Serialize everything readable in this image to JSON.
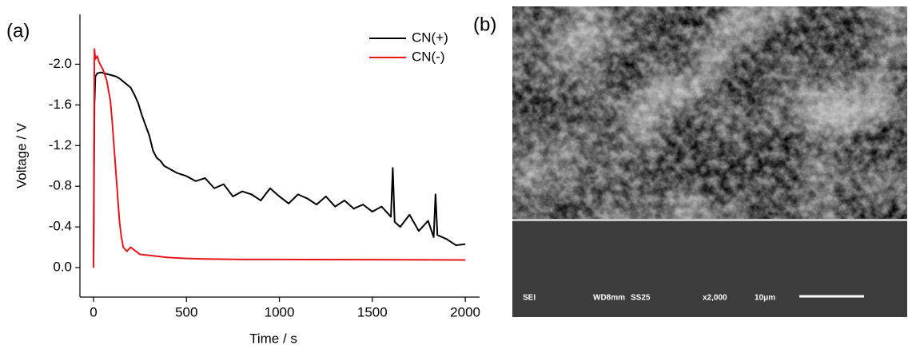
{
  "chart_data": {
    "type": "line",
    "panel_label": "(a)",
    "x_label": "Time / s",
    "y_label": "Voltage / V",
    "xlim": [
      -73,
      2077
    ],
    "xticks": [
      0,
      500,
      1000,
      1500,
      2000
    ],
    "ylim": [
      0.29,
      -2.49
    ],
    "yticks": [
      {
        "value": -2,
        "label": "-2.0"
      },
      {
        "value": -1.6,
        "label": "-1.6"
      },
      {
        "value": -1.2,
        "label": "-1.2"
      },
      {
        "value": -0.8,
        "label": "-0.8"
      },
      {
        "value": -0.4,
        "label": "-0.4"
      },
      {
        "value": 0,
        "label": "0.0"
      }
    ],
    "legend": "top-right",
    "series": [
      {
        "name": "CN(+)",
        "color": "#000000",
        "x": [
          0,
          5,
          10,
          20,
          40,
          60,
          80,
          100,
          120,
          140,
          160,
          180,
          200,
          220,
          240,
          260,
          280,
          300,
          320,
          340,
          360,
          380,
          400,
          450,
          500,
          550,
          600,
          650,
          700,
          750,
          800,
          850,
          900,
          950,
          1000,
          1050,
          1100,
          1150,
          1200,
          1250,
          1300,
          1350,
          1400,
          1450,
          1500,
          1550,
          1600,
          1610,
          1620,
          1650,
          1700,
          1750,
          1800,
          1830,
          1840,
          1850,
          1900,
          1950,
          2000
        ],
        "values": [
          0,
          -1.6,
          -1.88,
          -1.91,
          -1.92,
          -1.91,
          -1.9,
          -1.89,
          -1.88,
          -1.86,
          -1.83,
          -1.8,
          -1.77,
          -1.7,
          -1.62,
          -1.5,
          -1.4,
          -1.3,
          -1.15,
          -1.08,
          -1.05,
          -1.0,
          -0.98,
          -0.93,
          -0.9,
          -0.85,
          -0.88,
          -0.78,
          -0.82,
          -0.7,
          -0.75,
          -0.72,
          -0.66,
          -0.78,
          -0.7,
          -0.63,
          -0.72,
          -0.68,
          -0.62,
          -0.7,
          -0.6,
          -0.66,
          -0.58,
          -0.62,
          -0.55,
          -0.6,
          -0.5,
          -0.98,
          -0.45,
          -0.4,
          -0.52,
          -0.36,
          -0.46,
          -0.3,
          -0.72,
          -0.32,
          -0.28,
          -0.22,
          -0.23
        ]
      },
      {
        "name": "CN(-)",
        "color": "#e8161b",
        "x": [
          0,
          5,
          10,
          20,
          30,
          50,
          70,
          90,
          100,
          110,
          120,
          130,
          140,
          150,
          160,
          180,
          200,
          250,
          300,
          400,
          500,
          600,
          800,
          1000,
          1500,
          2000
        ],
        "values": [
          0,
          -2.15,
          -2.05,
          -2.08,
          -2.02,
          -1.95,
          -1.85,
          -1.65,
          -1.45,
          -1.2,
          -0.95,
          -0.7,
          -0.45,
          -0.3,
          -0.2,
          -0.16,
          -0.2,
          -0.13,
          -0.12,
          -0.1,
          -0.09,
          -0.085,
          -0.08,
          -0.08,
          -0.078,
          -0.075
        ]
      }
    ]
  },
  "panel_b": {
    "label": "(b)",
    "info": [
      "SEI",
      "WD8mm",
      "SS25",
      "x2,000",
      "10μm"
    ]
  }
}
